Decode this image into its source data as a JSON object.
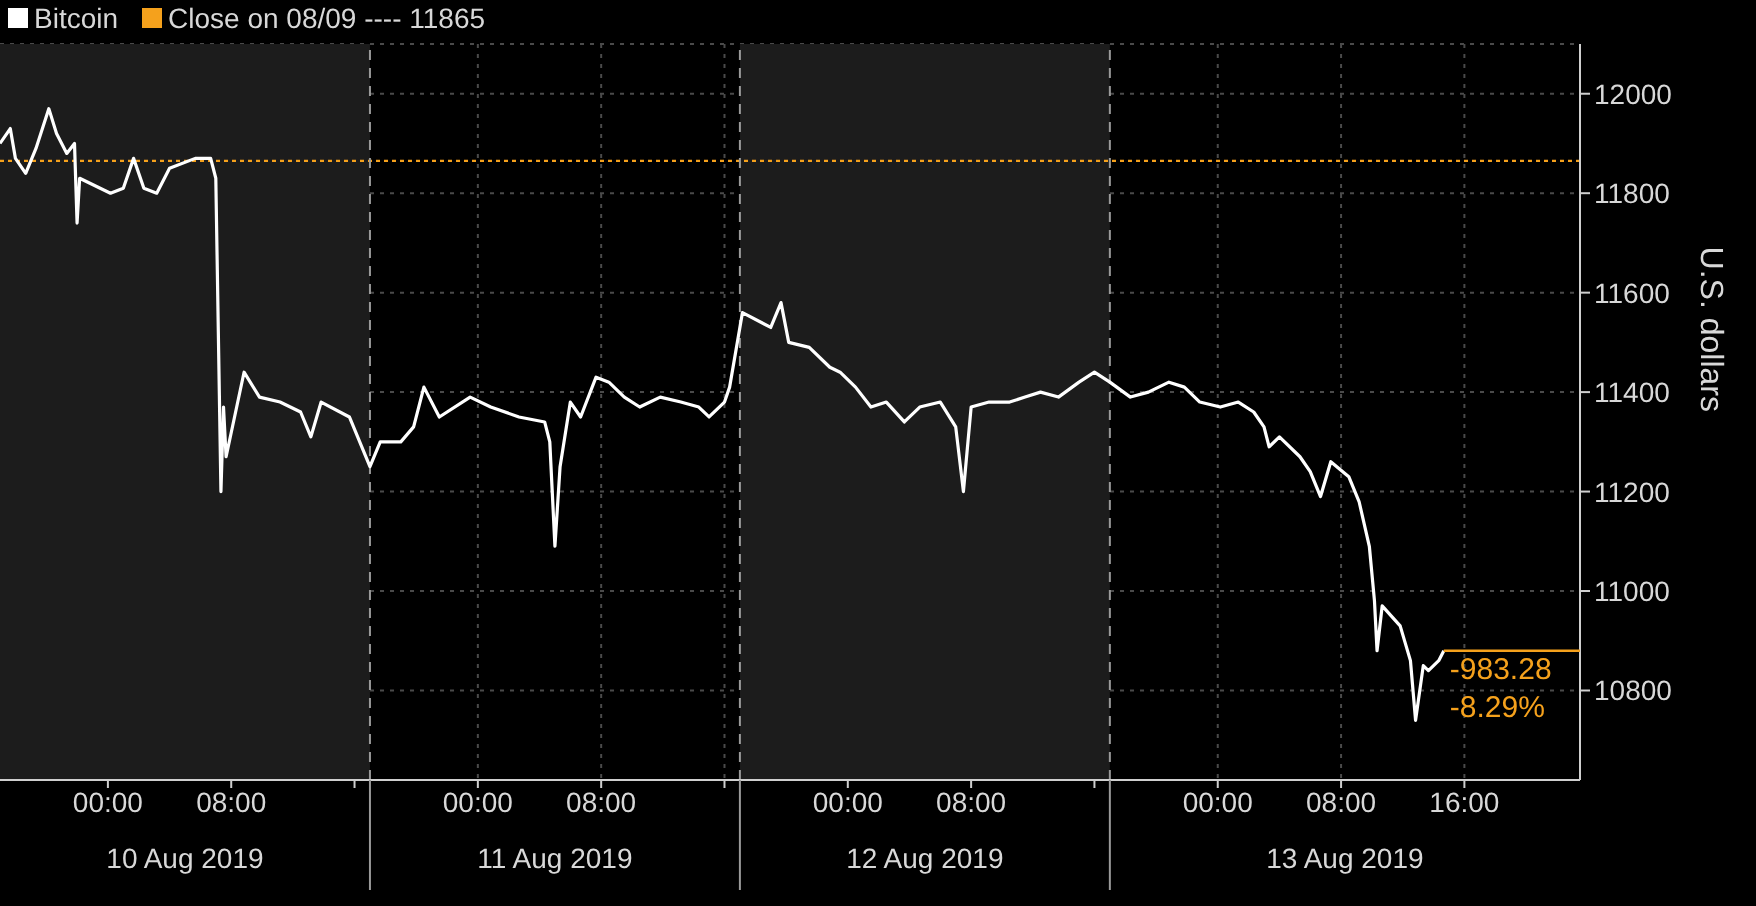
{
  "chart_data": {
    "type": "line",
    "ylabel": "U.S. dollars",
    "legend": "top left",
    "grid": true,
    "marker": "none",
    "line_style": "solid",
    "xlim": [
      "2019-08-09T17:00",
      "2019-08-13T23:30"
    ],
    "xticks": [
      {
        "value": "2019-08-10T00:00",
        "label": "00:00"
      },
      {
        "value": "2019-08-10T08:00",
        "label": "08:00"
      },
      {
        "value": "2019-08-10T16:00",
        "label": null
      },
      {
        "value": "2019-08-11T00:00",
        "label": "00:00"
      },
      {
        "value": "2019-08-11T08:00",
        "label": "08:00"
      },
      {
        "value": "2019-08-11T16:00",
        "label": null
      },
      {
        "value": "2019-08-12T00:00",
        "label": "00:00"
      },
      {
        "value": "2019-08-12T08:00",
        "label": "08:00"
      },
      {
        "value": "2019-08-12T16:00",
        "label": null
      },
      {
        "value": "2019-08-13T00:00",
        "label": "00:00"
      },
      {
        "value": "2019-08-13T08:00",
        "label": "08:00"
      },
      {
        "value": "2019-08-13T16:00",
        "label": "16:00"
      }
    ],
    "ylim": [
      10620,
      12100
    ],
    "yticks": [
      10800,
      11000,
      11200,
      11400,
      11600,
      11800,
      12000
    ],
    "x": [
      "2019-08-09T17:00",
      "2019-08-09T17:40",
      "2019-08-09T18:00",
      "2019-08-09T18:40",
      "2019-08-09T19:20",
      "2019-08-09T20:10",
      "2019-08-09T20:40",
      "2019-08-09T21:20",
      "2019-08-09T21:50",
      "2019-08-09T22:00",
      "2019-08-09T22:10",
      "2019-08-09T22:50",
      "2019-08-10T00:10",
      "2019-08-10T01:00",
      "2019-08-10T01:40",
      "2019-08-10T02:20",
      "2019-08-10T03:10",
      "2019-08-10T04:00",
      "2019-08-10T05:40",
      "2019-08-10T06:40",
      "2019-08-10T07:00",
      "2019-08-10T07:20",
      "2019-08-10T07:30",
      "2019-08-10T07:40",
      "2019-08-10T08:50",
      "2019-08-10T09:50",
      "2019-08-10T11:10",
      "2019-08-10T12:30",
      "2019-08-10T13:10",
      "2019-08-10T13:50",
      "2019-08-10T15:40",
      "2019-08-10T17:00",
      "2019-08-10T17:40",
      "2019-08-10T19:00",
      "2019-08-10T19:50",
      "2019-08-10T20:30",
      "2019-08-10T21:30",
      "2019-08-10T23:30",
      "2019-08-11T00:50",
      "2019-08-11T02:40",
      "2019-08-11T04:20",
      "2019-08-11T04:40",
      "2019-08-11T05:00",
      "2019-08-11T05:20",
      "2019-08-11T06:00",
      "2019-08-11T06:40",
      "2019-08-11T07:40",
      "2019-08-11T08:30",
      "2019-08-11T09:30",
      "2019-08-11T10:30",
      "2019-08-11T11:50",
      "2019-08-11T13:10",
      "2019-08-11T14:20",
      "2019-08-11T15:00",
      "2019-08-11T16:00",
      "2019-08-11T16:20",
      "2019-08-11T17:10",
      "2019-08-11T19:00",
      "2019-08-11T19:40",
      "2019-08-11T20:10",
      "2019-08-11T21:30",
      "2019-08-11T22:50",
      "2019-08-11T23:30",
      "2019-08-12T00:30",
      "2019-08-12T01:30",
      "2019-08-12T02:30",
      "2019-08-12T03:40",
      "2019-08-12T04:40",
      "2019-08-12T06:00",
      "2019-08-12T07:00",
      "2019-08-12T07:30",
      "2019-08-12T08:00",
      "2019-08-12T09:10",
      "2019-08-12T10:30",
      "2019-08-12T11:30",
      "2019-08-12T12:30",
      "2019-08-12T13:40",
      "2019-08-12T15:00",
      "2019-08-12T16:00",
      "2019-08-12T17:00",
      "2019-08-12T18:20",
      "2019-08-12T19:30",
      "2019-08-12T20:50",
      "2019-08-12T21:50",
      "2019-08-12T22:50",
      "2019-08-13T00:10",
      "2019-08-13T01:20",
      "2019-08-13T02:20",
      "2019-08-13T03:00",
      "2019-08-13T03:20",
      "2019-08-13T04:00",
      "2019-08-13T05:20",
      "2019-08-13T06:00",
      "2019-08-13T06:40",
      "2019-08-13T07:20",
      "2019-08-13T08:30",
      "2019-08-13T09:10",
      "2019-08-13T09:50",
      "2019-08-13T10:10",
      "2019-08-13T10:20",
      "2019-08-13T10:40",
      "2019-08-13T11:50",
      "2019-08-13T12:30",
      "2019-08-13T12:50",
      "2019-08-13T13:20",
      "2019-08-13T13:40",
      "2019-08-13T14:20",
      "2019-08-13T14:40"
    ],
    "series": [
      {
        "name": "Bitcoin",
        "color": "#ffffff",
        "values": [
          11900,
          11930,
          11870,
          11840,
          11890,
          11970,
          11920,
          11880,
          11900,
          11740,
          11830,
          11820,
          11800,
          11810,
          11870,
          11810,
          11800,
          11850,
          11870,
          11870,
          11830,
          11200,
          11370,
          11270,
          11440,
          11390,
          11380,
          11360,
          11310,
          11380,
          11350,
          11250,
          11300,
          11300,
          11330,
          11410,
          11350,
          11390,
          11370,
          11350,
          11340,
          11300,
          11090,
          11250,
          11380,
          11350,
          11430,
          11420,
          11390,
          11370,
          11390,
          11380,
          11370,
          11350,
          11380,
          11410,
          11560,
          11530,
          11580,
          11500,
          11490,
          11450,
          11440,
          11410,
          11370,
          11380,
          11340,
          11370,
          11380,
          11330,
          11200,
          11370,
          11380,
          11380,
          11390,
          11400,
          11390,
          11420,
          11440,
          11420,
          11390,
          11400,
          11420,
          11410,
          11380,
          11370,
          11380,
          11360,
          11330,
          11290,
          11310,
          11270,
          11240,
          11190,
          11260,
          11230,
          11180,
          11090,
          10980,
          10880,
          10970,
          10930,
          10860,
          10740,
          10850,
          10840,
          10860,
          10880
        ]
      }
    ],
    "ref_lines": [
      {
        "axis": "y",
        "value": 11865,
        "label": "Close on 08/09 ---- 11865",
        "color": "#f5a11c",
        "line_style": "dotted"
      },
      {
        "axis": "x",
        "value": "2019-08-10T17:00",
        "color": "#9a9a9a",
        "line_style": "dashed"
      },
      {
        "axis": "x",
        "value": "2019-08-11T17:00",
        "color": "#9a9a9a",
        "line_style": "dashed"
      },
      {
        "axis": "x",
        "value": "2019-08-12T17:00",
        "color": "#9a9a9a",
        "line_style": "dashed"
      }
    ],
    "bands": [
      {
        "axis": "x",
        "from": "2019-08-09T17:00",
        "to": "2019-08-10T17:00",
        "color": "#1c1c1c"
      },
      {
        "axis": "x",
        "from": "2019-08-11T17:00",
        "to": "2019-08-12T17:00",
        "color": "#1c1c1c"
      }
    ],
    "annotations": [
      "10 Aug 2019",
      "11 Aug 2019",
      "12 Aug 2019",
      "13 Aug 2019",
      {
        "text": "-983.28",
        "x": "2019-08-13T14:40",
        "y": 10880
      },
      {
        "text": "-8.29%",
        "x": "2019-08-13T14:40",
        "y": 10880
      }
    ]
  }
}
